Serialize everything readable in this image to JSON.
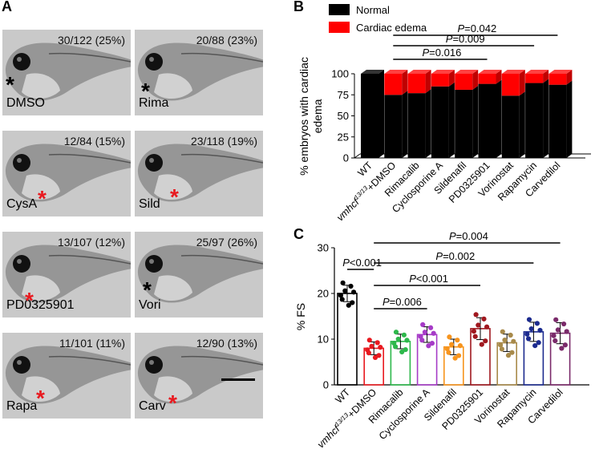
{
  "panel_a": {
    "letter": "A",
    "tiles": [
      {
        "drug": "DMSO",
        "count": "30/122 (25%)",
        "star": "*",
        "star_color": "black"
      },
      {
        "drug": "Rima",
        "count": "20/88 (23%)",
        "star": "*",
        "star_color": "black"
      },
      {
        "drug": "CysA",
        "count": "12/84 (15%)",
        "star": "*",
        "star_color": "red"
      },
      {
        "drug": "Sild",
        "count": "23/118 (19%)",
        "star": "*",
        "star_color": "red"
      },
      {
        "drug": "PD0325901",
        "count": "13/107 (12%)",
        "star": "*",
        "star_color": "red"
      },
      {
        "drug": "Vori",
        "count": "25/97 (26%)",
        "star": "*",
        "star_color": "black"
      },
      {
        "drug": "Rapa",
        "count": "11/101 (11%)",
        "star": "*",
        "star_color": "red"
      },
      {
        "drug": "Carv",
        "count": "12/90 (13%)",
        "star": "*",
        "star_color": "red"
      }
    ]
  },
  "chart_data": [
    {
      "panel": "B",
      "type": "bar",
      "stacked": true,
      "ylabel_line1": "% embryos with cardiac",
      "ylabel_line2": "edema",
      "categories": [
        "WT",
        "vmhcf13/13+DMSO",
        "Rimacalib",
        "Cyclosporine A",
        "Sildenafil",
        "PD0325901",
        "Vorinostat",
        "Rapamycin",
        "Carvedilol"
      ],
      "category_main": [
        "WT",
        "vmhcf",
        "Rimacalib",
        "Cyclosporine A",
        "Sildenafil",
        "PD0325901",
        "Vorinostat",
        "Rapamycin",
        "Carvedilol"
      ],
      "category_sup": [
        "",
        "13/13",
        "",
        "",
        "",
        "",
        "",
        "",
        ""
      ],
      "category_suffix": [
        "",
        "+DMSO",
        "",
        "",
        "",
        "",
        "",
        "",
        ""
      ],
      "series": [
        {
          "name": "Normal",
          "color": "#000000",
          "values": [
            100,
            75,
            77,
            85,
            81,
            88,
            74,
            89,
            87
          ]
        },
        {
          "name": "Cardiac edema",
          "color": "#ff0000",
          "values": [
            0,
            25,
            23,
            15,
            19,
            12,
            26,
            11,
            13
          ]
        }
      ],
      "ylim": [
        0,
        100
      ],
      "yticks": [
        "0",
        "25",
        "50",
        "75",
        "100"
      ],
      "legend": "top-left",
      "annotations": [
        {
          "text": "=0.042",
          "from": 1,
          "to": 8
        },
        {
          "text": "=0.009",
          "from": 1,
          "to": 7
        },
        {
          "text": "=0.016",
          "from": 1,
          "to": 5
        }
      ]
    },
    {
      "panel": "C",
      "type": "bar",
      "ylabel": "% FS",
      "categories": [
        "WT",
        "vmhcf13/13+DMSO",
        "Rimacalib",
        "Cyclosporine A",
        "Sildenafil",
        "PD0325901",
        "Vorinostat",
        "Rapamycin",
        "Carvedilol"
      ],
      "colors": [
        "#000000",
        "#e8191f",
        "#2db84b",
        "#a63bc7",
        "#f7941d",
        "#a0181f",
        "#a88a4a",
        "#1c2b8f",
        "#7a2a6a"
      ],
      "values": [
        20,
        8,
        9.5,
        11,
        8.3,
        12.3,
        9.2,
        11.6,
        11.3
      ],
      "errors": [
        1.8,
        1.4,
        1.6,
        1.7,
        1.7,
        2.4,
        1.9,
        2.1,
        2.3
      ],
      "ylim": [
        0,
        30
      ],
      "yticks": [
        "0",
        "10",
        "20",
        "30"
      ],
      "annotations": [
        {
          "text": "<0.001",
          "from": 0,
          "to": 1
        },
        {
          "text": "=0.004",
          "from": 1,
          "to": 8
        },
        {
          "text": "=0.002",
          "from": 1,
          "to": 7
        },
        {
          "text": "<0.001",
          "from": 1,
          "to": 5
        },
        {
          "text": "=0.006",
          "from": 1,
          "to": 3
        }
      ]
    }
  ]
}
